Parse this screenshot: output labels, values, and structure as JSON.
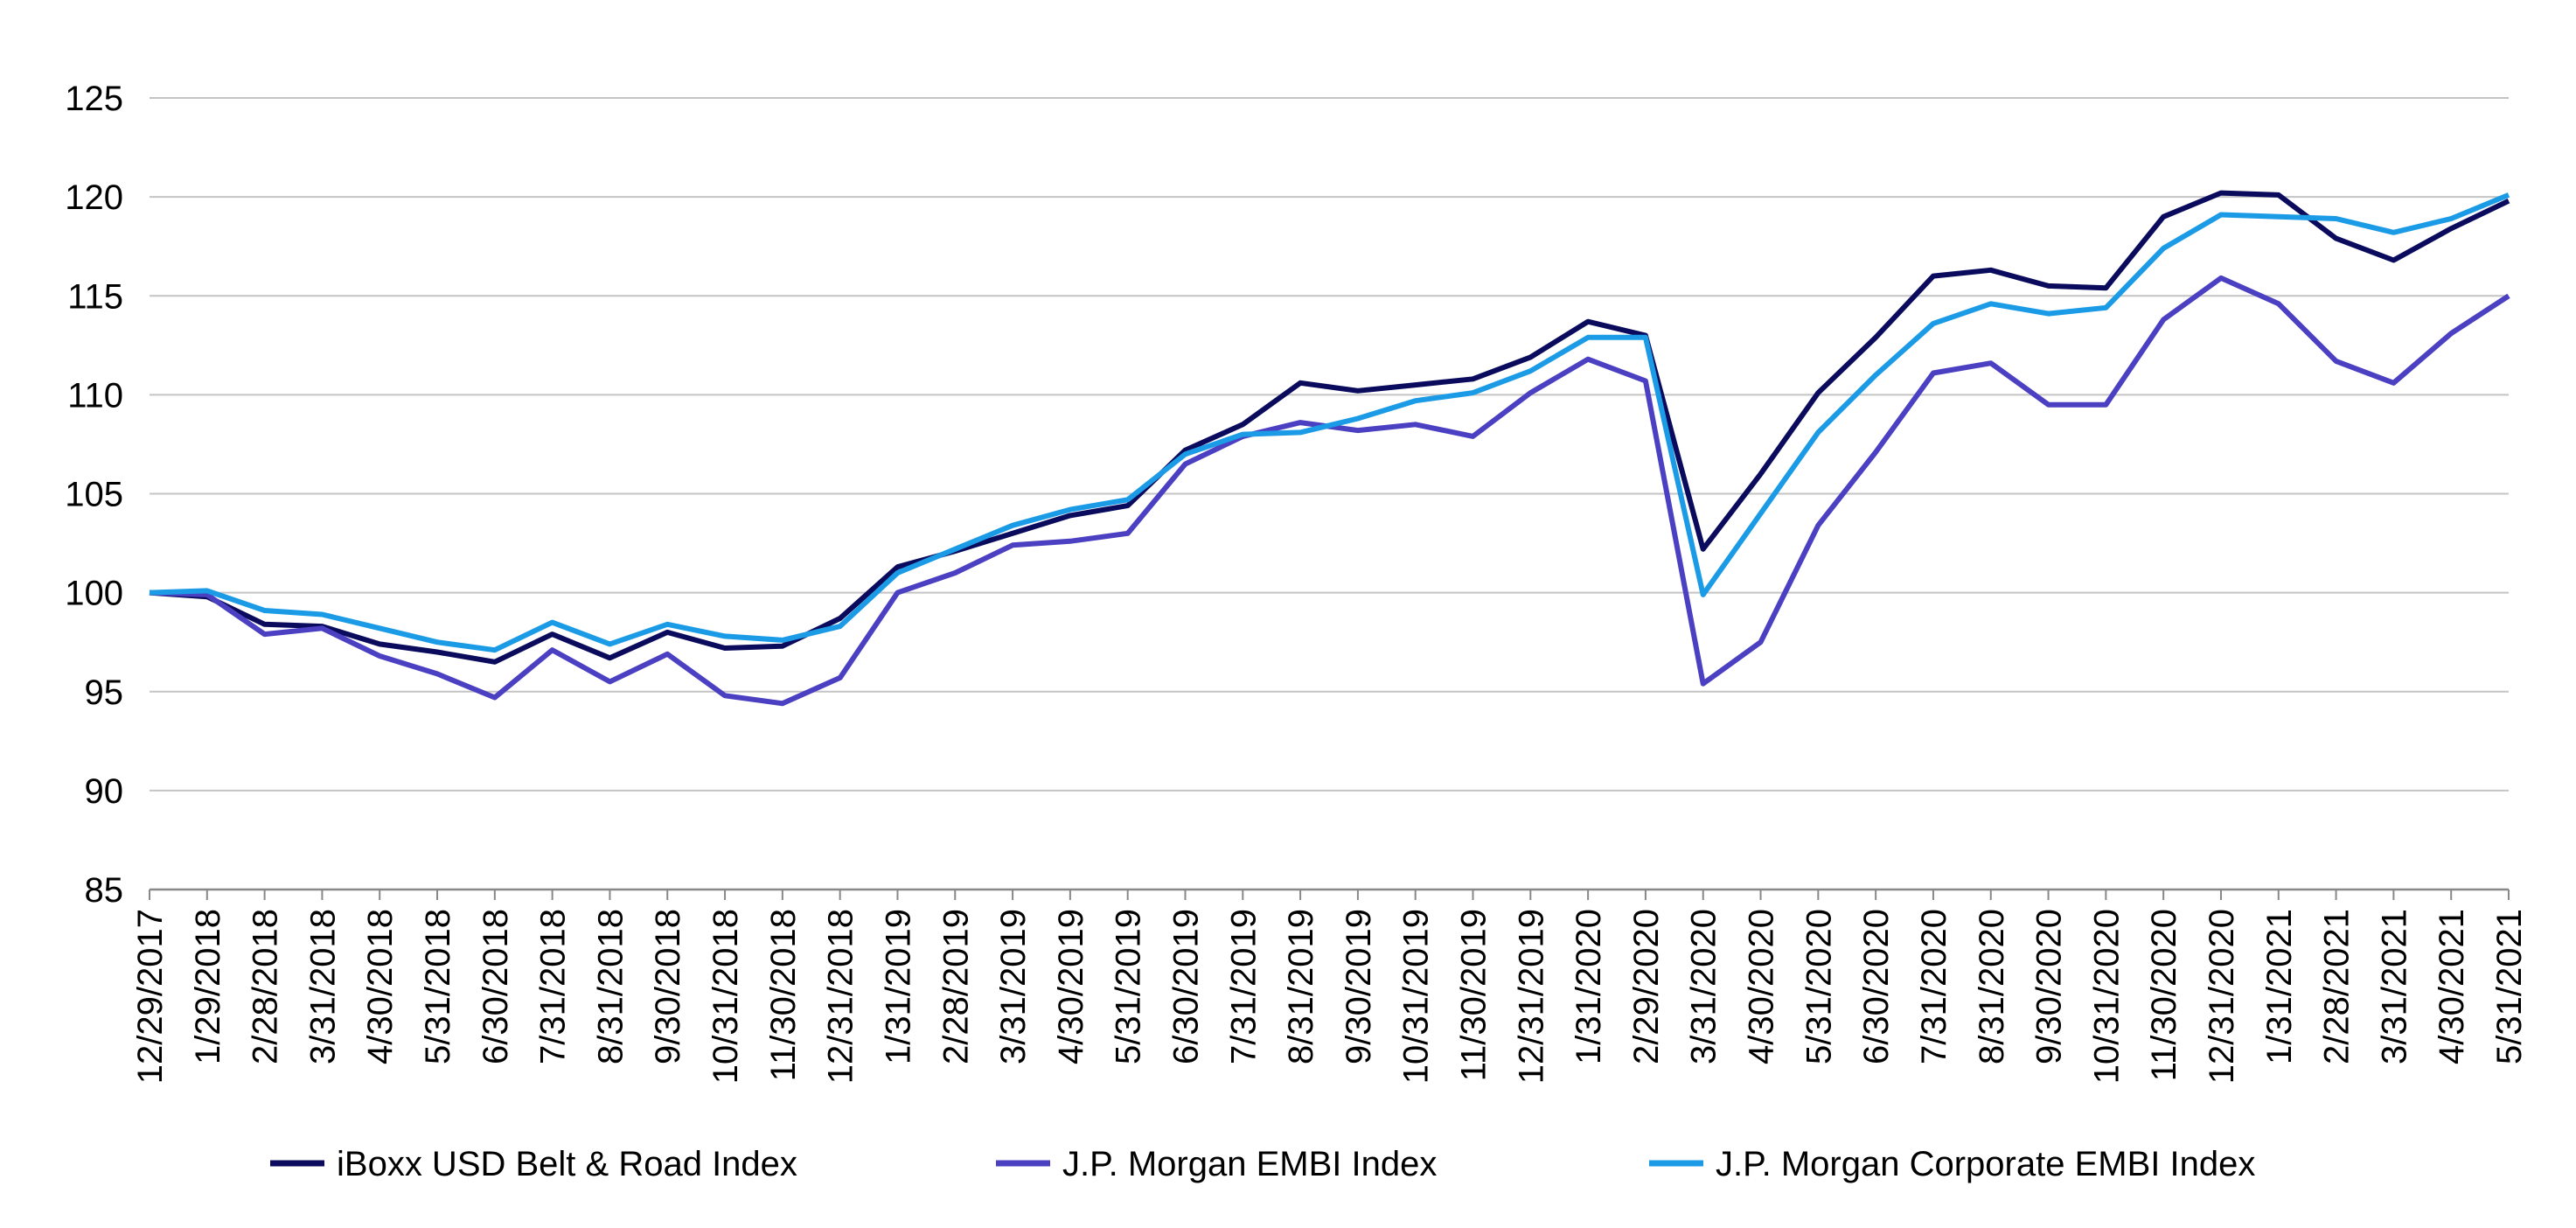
{
  "chart_data": {
    "type": "line",
    "categories": [
      "12/29/2017",
      "1/29/2018",
      "2/28/2018",
      "3/31/2018",
      "4/30/2018",
      "5/31/2018",
      "6/30/2018",
      "7/31/2018",
      "8/31/2018",
      "9/30/2018",
      "10/31/2018",
      "11/30/2018",
      "12/31/2018",
      "1/31/2019",
      "2/28/2019",
      "3/31/2019",
      "4/30/2019",
      "5/31/2019",
      "6/30/2019",
      "7/31/2019",
      "8/31/2019",
      "9/30/2019",
      "10/31/2019",
      "11/30/2019",
      "12/31/2019",
      "1/31/2020",
      "2/29/2020",
      "3/31/2020",
      "4/30/2020",
      "5/31/2020",
      "6/30/2020",
      "7/31/2020",
      "8/31/2020",
      "9/30/2020",
      "10/31/2020",
      "11/30/2020",
      "12/31/2020",
      "1/31/2021",
      "2/28/2021",
      "3/31/2021",
      "4/30/2021",
      "5/31/2021"
    ],
    "series": [
      {
        "name": "iBoxx USD Belt & Road Index",
        "color": "#0b0b5e",
        "values": [
          100,
          99.8,
          98.4,
          98.3,
          97.4,
          97.0,
          96.5,
          97.9,
          96.7,
          98.0,
          97.2,
          97.3,
          98.7,
          101.3,
          102.1,
          103.0,
          103.9,
          104.4,
          107.2,
          108.5,
          110.6,
          110.2,
          110.5,
          110.8,
          111.9,
          113.7,
          113.0,
          102.2,
          106.0,
          110.1,
          112.9,
          116.0,
          116.3,
          115.5,
          115.4,
          119.0,
          120.2,
          120.1,
          117.9,
          116.8,
          118.4,
          119.8
        ]
      },
      {
        "name": "J.P. Morgan EMBI Index",
        "color": "#4b3fc2",
        "values": [
          100,
          99.9,
          97.9,
          98.2,
          96.8,
          95.9,
          94.7,
          97.1,
          95.5,
          96.9,
          94.8,
          94.4,
          95.7,
          100.0,
          101.0,
          102.4,
          102.6,
          103.0,
          106.5,
          107.9,
          108.6,
          108.2,
          108.5,
          107.9,
          110.1,
          111.8,
          110.7,
          95.4,
          97.5,
          103.4,
          107.1,
          111.1,
          111.6,
          109.5,
          109.5,
          113.8,
          115.9,
          114.6,
          111.7,
          110.6,
          113.1,
          115.0
        ]
      },
      {
        "name": "J.P. Morgan Corporate EMBI Index",
        "color": "#1b9be6",
        "values": [
          100,
          100.1,
          99.1,
          98.9,
          98.2,
          97.5,
          97.1,
          98.5,
          97.4,
          98.4,
          97.8,
          97.6,
          98.3,
          101.0,
          102.2,
          103.4,
          104.2,
          104.7,
          107.0,
          108.0,
          108.1,
          108.8,
          109.7,
          110.1,
          111.2,
          112.9,
          112.9,
          99.9,
          104.0,
          108.1,
          111.0,
          113.6,
          114.6,
          114.1,
          114.4,
          117.4,
          119.1,
          119.0,
          118.9,
          118.2,
          118.9,
          120.1
        ]
      }
    ],
    "ylim": [
      85,
      125
    ],
    "yticks": [
      85,
      90,
      95,
      100,
      105,
      110,
      115,
      120,
      125
    ],
    "grid": true,
    "legend": "bottom"
  }
}
